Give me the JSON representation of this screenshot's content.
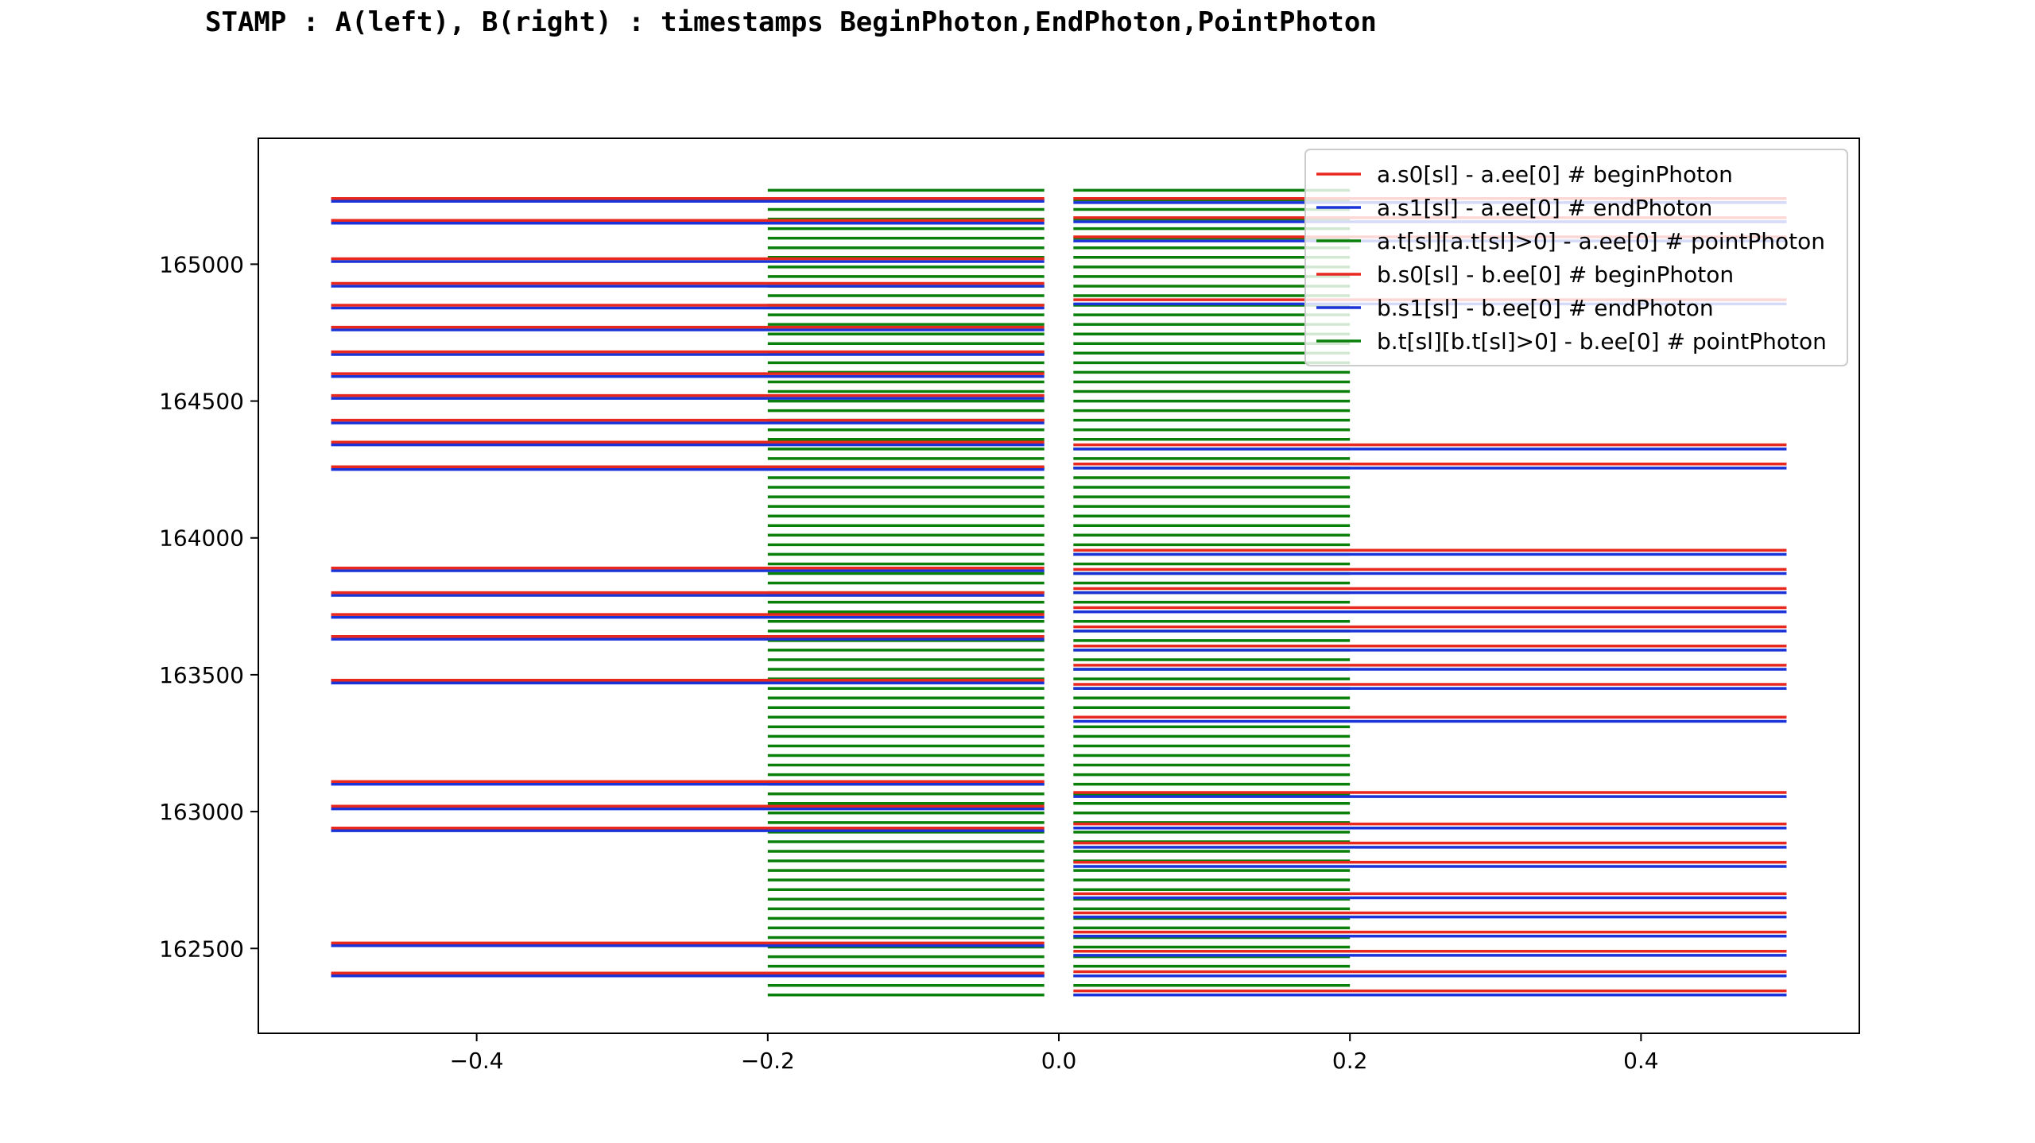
{
  "title": "STAMP : A(left), B(right) : timestamps BeginPhoton,EndPhoton,PointPhoton",
  "colors": {
    "begin": "#e8281e",
    "end": "#1a33d8",
    "point": "#0a800a",
    "axis": "#000000"
  },
  "chart_data": {
    "type": "line",
    "title": "STAMP : A(left), B(right) : timestamps BeginPhoton,EndPhoton,PointPhoton",
    "xlabel": "",
    "ylabel": "",
    "xlim": [
      -0.55,
      0.55
    ],
    "ylim": [
      162190,
      165460
    ],
    "xticks": [
      -0.4,
      -0.2,
      0.0,
      0.2,
      0.4
    ],
    "xtick_labels": [
      "−0.4",
      "−0.2",
      "0.0",
      "0.2",
      "0.4"
    ],
    "yticks": [
      162500,
      163000,
      163500,
      164000,
      164500,
      165000
    ],
    "ytick_labels": [
      "162500",
      "163000",
      "163500",
      "164000",
      "164500",
      "165000"
    ],
    "grid": false,
    "legend_position": "top-right",
    "legend": [
      "a.s0[sl] - a.ee[0] # beginPhoton",
      "a.s1[sl] - a.ee[0] # endPhoton",
      "a.t[sl][a.t[sl]>0] - a.ee[0]  # pointPhoton",
      "b.s0[sl] - b.ee[0] # beginPhoton",
      "b.s1[sl] - b.ee[0] # endPhoton",
      "b.t[sl][b.t[sl]>0] - b.ee[0]  # pointPhoton"
    ],
    "series": [
      {
        "name": "a.s0[sl] - a.ee[0] # beginPhoton",
        "kind": "begin",
        "x_range": [
          -0.5,
          -0.01
        ],
        "values": [
          162410,
          162520,
          162940,
          163020,
          163110,
          163480,
          163640,
          163720,
          163800,
          163890,
          164260,
          164350,
          164430,
          164520,
          164600,
          164680,
          164770,
          164850,
          164930,
          165020,
          165160,
          165240
        ]
      },
      {
        "name": "a.s1[sl] - a.ee[0] # endPhoton",
        "kind": "end",
        "x_range": [
          -0.5,
          -0.01
        ],
        "values": [
          162400,
          162510,
          162930,
          163010,
          163100,
          163470,
          163630,
          163710,
          163790,
          163880,
          164250,
          164340,
          164420,
          164510,
          164590,
          164670,
          164760,
          164840,
          164920,
          165010,
          165150,
          165230
        ]
      },
      {
        "name": "a.t[sl][a.t[sl]>0] - a.ee[0]  # pointPhoton",
        "kind": "point",
        "x_range": [
          -0.2,
          -0.01
        ],
        "start": 162330,
        "end": 165285,
        "step": 35
      },
      {
        "name": "b.s0[sl] - b.ee[0] # beginPhoton",
        "kind": "begin",
        "x_range": [
          0.01,
          0.5
        ],
        "values": [
          162345,
          162415,
          162490,
          162560,
          162630,
          162700,
          162815,
          162885,
          162955,
          163070,
          163345,
          163465,
          163535,
          163605,
          163675,
          163745,
          163815,
          163885,
          163955,
          164270,
          164340,
          164870,
          165100,
          165170,
          165240
        ]
      },
      {
        "name": "b.s1[sl] - b.ee[0] # endPhoton",
        "kind": "end",
        "x_range": [
          0.01,
          0.5
        ],
        "values": [
          162330,
          162400,
          162475,
          162545,
          162615,
          162685,
          162800,
          162870,
          162940,
          163055,
          163330,
          163450,
          163520,
          163590,
          163660,
          163730,
          163800,
          163870,
          163940,
          164255,
          164325,
          164855,
          165085,
          165155,
          165225
        ]
      },
      {
        "name": "b.t[sl][b.t[sl]>0] - b.ee[0]  # pointPhoton",
        "kind": "point",
        "x_range": [
          0.01,
          0.2
        ],
        "start": 162330,
        "end": 165300,
        "step": 35
      }
    ]
  }
}
